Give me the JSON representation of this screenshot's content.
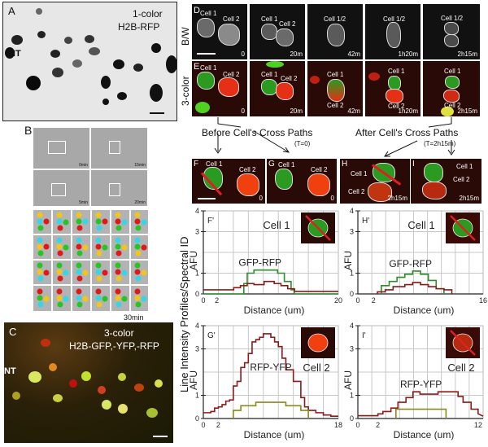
{
  "figure": {
    "panel_A": {
      "letter": "A",
      "title_line1": "1-color",
      "title_line2": "H2B-RFP",
      "region_label": "NT"
    },
    "panel_B": {
      "letter": "B",
      "thumb_times": [
        "0min",
        "15min",
        "5min",
        "20min"
      ],
      "end_time": "30min"
    },
    "panel_C": {
      "letter": "C",
      "title_line1": "3-color",
      "title_line2": "H2B-GFP,-YFP,-RFP",
      "region_label": "NT"
    },
    "row_labels": {
      "bw": "B/W",
      "three_color": "3-color"
    },
    "panel_D": {
      "letter": "D",
      "frames": [
        {
          "time": "0",
          "labels": [
            "Cell 1",
            "Cell 2"
          ]
        },
        {
          "time": "20m",
          "labels": [
            "Cell 1",
            "Cell 2"
          ]
        },
        {
          "time": "42m",
          "labels": [
            "Cell 1/2"
          ]
        },
        {
          "time": "1h20m",
          "labels": [
            "Cell 1/2"
          ]
        },
        {
          "time": "2h15m",
          "labels": [
            "Cell 1/2"
          ]
        }
      ]
    },
    "panel_E": {
      "letter": "E",
      "frames": [
        {
          "time": "0",
          "labels": [
            "Cell 1",
            "Cell 2"
          ]
        },
        {
          "time": "20m",
          "labels": [
            "Cell 1",
            "Cell 2"
          ]
        },
        {
          "time": "42m",
          "labels": [
            "Cell 1",
            "Cell 2"
          ]
        },
        {
          "time": "1h20m",
          "labels": [
            "Cell 1",
            "Cell 2"
          ]
        },
        {
          "time": "2h15m",
          "labels": [
            "Cell 1",
            "Cell 2"
          ]
        }
      ]
    },
    "annotations": {
      "before": "Before Cell's Cross Paths",
      "before_t": "(T=0)",
      "after": "After Cell's Cross Paths",
      "after_t": "(T=2h15m)"
    },
    "panels_FGHI": [
      {
        "letter": "F",
        "time": "0",
        "cell1": "Cell 1",
        "cell2": "Cell 2"
      },
      {
        "letter": "G",
        "time": "0",
        "cell1": "Cell 1",
        "cell2": "Cell 2"
      },
      {
        "letter": "H",
        "time": "2h15m",
        "cell1": "Cell 1",
        "cell2": "Cell 2"
      },
      {
        "letter": "I",
        "time": "2h15m",
        "cell1": "Cell 1",
        "cell2": "Cell 2"
      }
    ],
    "shared_ylabel": "Line Intensity Profiles/Spectral ID"
  },
  "chart_data": [
    {
      "id": "F'",
      "type": "line",
      "title": "Cell 1",
      "annotation": "GFP-RFP",
      "xlabel": "Distance (um)",
      "ylabel": "AFU",
      "xticks": [
        "0",
        "2",
        "20"
      ],
      "yticks": [
        "0",
        "1",
        "3",
        "4"
      ],
      "xlim": [
        0,
        20
      ],
      "ylim": [
        0,
        4
      ],
      "grid": true,
      "series": [
        {
          "name": "GFP",
          "color": "#2e8b2e",
          "x": [
            0,
            6,
            6,
            6.5,
            6.5,
            7.5,
            7.5,
            11,
            11,
            12,
            12,
            13,
            13,
            13.5,
            13.5,
            20
          ],
          "y": [
            0,
            0,
            0.5,
            0.5,
            1.0,
            1.0,
            1.15,
            1.15,
            1.0,
            1.0,
            0.6,
            0.6,
            0.2,
            0.2,
            0,
            0
          ]
        },
        {
          "name": "RFP",
          "color": "#8b1a1a",
          "x": [
            0,
            4.5,
            4.5,
            5.5,
            5.5,
            6.5,
            6.5,
            7.5,
            7.5,
            9,
            9,
            10.5,
            10.5,
            11.5,
            11.5,
            12.5,
            12.5,
            13.5,
            13.5,
            20
          ],
          "y": [
            0.2,
            0.2,
            0.3,
            0.3,
            0.4,
            0.4,
            0.5,
            0.5,
            0.45,
            0.45,
            0.6,
            0.6,
            0.5,
            0.5,
            0.4,
            0.4,
            0.25,
            0.25,
            0.12,
            0.12
          ]
        }
      ]
    },
    {
      "id": "H'",
      "type": "line",
      "title": "Cell 1",
      "annotation": "GFP-RFP",
      "xlabel": "Distance (um)",
      "ylabel": "AFU",
      "xticks": [
        "0",
        "2",
        "16"
      ],
      "yticks": [
        "0",
        "1",
        "3",
        "4"
      ],
      "xlim": [
        0,
        16
      ],
      "ylim": [
        0,
        4
      ],
      "grid": true,
      "series": [
        {
          "name": "GFP",
          "color": "#2e8b2e",
          "x": [
            3,
            3,
            4,
            4,
            5,
            5,
            6,
            6,
            7,
            7,
            8,
            8,
            9,
            9,
            10,
            10,
            11,
            11
          ],
          "y": [
            0,
            0.4,
            0.4,
            0.6,
            0.6,
            0.8,
            0.8,
            0.95,
            0.95,
            1.1,
            1.1,
            0.95,
            0.95,
            0.65,
            0.65,
            0.25,
            0.25,
            0
          ]
        },
        {
          "name": "RFP",
          "color": "#8b1a1a",
          "x": [
            2.5,
            2.5,
            3.5,
            3.5,
            4.5,
            4.5,
            6,
            6,
            7,
            7,
            8,
            8,
            9,
            9,
            10,
            10,
            11,
            11,
            12,
            12
          ],
          "y": [
            0,
            0.1,
            0.1,
            0.2,
            0.2,
            0.35,
            0.35,
            0.45,
            0.45,
            0.55,
            0.55,
            0.45,
            0.45,
            0.35,
            0.35,
            0.25,
            0.25,
            0.2,
            0.2,
            0
          ]
        }
      ]
    },
    {
      "id": "G'",
      "type": "line",
      "title": "Cell 2",
      "annotation": "RFP-YFP",
      "xlabel": "Distance (um)",
      "ylabel": "AFU",
      "xticks": [
        "0",
        "2",
        "18"
      ],
      "yticks": [
        "0",
        "1",
        "3",
        "4"
      ],
      "xlim": [
        0,
        18
      ],
      "ylim": [
        0,
        4
      ],
      "grid": true,
      "series": [
        {
          "name": "RFP",
          "color": "#8b1a1a",
          "x": [
            0,
            1,
            1,
            1.5,
            1.5,
            2,
            2,
            2.5,
            2.5,
            3,
            3,
            3.5,
            3.5,
            4,
            4,
            4.5,
            4.5,
            5,
            5,
            5.5,
            5.5,
            6,
            6,
            6.5,
            6.5,
            7,
            7,
            7.5,
            7.5,
            8,
            8,
            9,
            9,
            9.5,
            9.5,
            10,
            10,
            10.5,
            10.5,
            11,
            11,
            12,
            12,
            13,
            13,
            13.5,
            13.5,
            14,
            14,
            15,
            15,
            16,
            16,
            17,
            17,
            18
          ],
          "y": [
            0.25,
            0.25,
            0.3,
            0.3,
            0.45,
            0.45,
            0.5,
            0.5,
            0.6,
            0.6,
            0.75,
            0.75,
            0.8,
            0.8,
            1.4,
            1.4,
            1.6,
            1.6,
            2.2,
            2.2,
            2.4,
            2.4,
            2.8,
            2.8,
            3.3,
            3.3,
            3.4,
            3.4,
            3.5,
            3.5,
            3.65,
            3.65,
            3.5,
            3.5,
            3.3,
            3.3,
            3.1,
            3.1,
            2.6,
            2.6,
            2.1,
            2.1,
            1.6,
            1.6,
            0.9,
            0.9,
            0.5,
            0.5,
            0.35,
            0.35,
            0.25,
            0.25,
            0.15,
            0.15,
            0.1,
            0.1
          ]
        },
        {
          "name": "YFP",
          "color": "#8a8a1a",
          "x": [
            4,
            4,
            5,
            5,
            7,
            7,
            11,
            11,
            13,
            13,
            14,
            14
          ],
          "y": [
            0,
            0.35,
            0.35,
            0.55,
            0.55,
            0.7,
            0.7,
            0.55,
            0.55,
            0.35,
            0.35,
            0
          ]
        }
      ]
    },
    {
      "id": "I'",
      "type": "line",
      "title": "Cell 2",
      "annotation": "RFP-YFP",
      "xlabel": "Distance (um)",
      "ylabel": "AFU",
      "xticks": [
        "0",
        "2",
        "12"
      ],
      "yticks": [
        "0",
        "1",
        "3",
        "4"
      ],
      "xlim": [
        0,
        12.5
      ],
      "ylim": [
        0,
        4
      ],
      "grid": true,
      "series": [
        {
          "name": "RFP",
          "color": "#8b1a1a",
          "x": [
            0,
            2,
            2,
            2.5,
            2.5,
            3.3,
            3.3,
            4,
            4,
            4.8,
            4.8,
            5.5,
            5.5,
            6.2,
            6.2,
            6.5,
            6.5,
            8,
            8,
            10,
            10,
            10.5,
            10.5,
            11.3,
            11.3,
            12,
            12,
            12.5
          ],
          "y": [
            0.12,
            0.12,
            0.2,
            0.2,
            0.3,
            0.3,
            0.45,
            0.45,
            0.7,
            0.7,
            0.9,
            0.9,
            1.15,
            1.15,
            1.05,
            1.05,
            1.05,
            1.05,
            1.15,
            1.15,
            0.95,
            0.95,
            0.7,
            0.7,
            0.4,
            0.4,
            0.2,
            0.1
          ]
        },
        {
          "name": "YFP",
          "color": "#8a8a1a",
          "x": [
            3.8,
            3.8,
            8.8,
            8.8
          ],
          "y": [
            0,
            0.4,
            0.4,
            0
          ]
        }
      ]
    }
  ]
}
